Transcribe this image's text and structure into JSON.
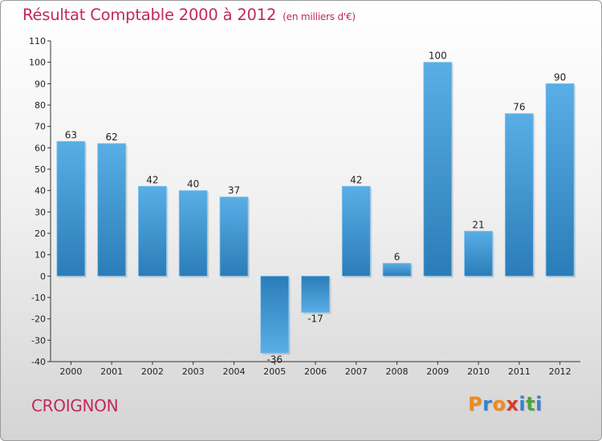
{
  "header": {
    "title": "Résultat Comptable 2000 à 2012",
    "unit": "(en milliers d'€)"
  },
  "footer": {
    "commune": "CROIGNON",
    "logo": [
      "P",
      "r",
      "o",
      "x",
      "i",
      "t",
      "i"
    ]
  },
  "colors": {
    "title": "#c2285e",
    "bar_top": "#5aaee6",
    "bar_bottom": "#2a7db8",
    "logo": [
      "#f08a1c",
      "#3b7fd0",
      "#f08a1c",
      "#d93a2b",
      "#3b7fd0",
      "#4aa63a",
      "#3b7fd0"
    ]
  },
  "chart_data": {
    "type": "bar",
    "title": "Résultat Comptable 2000 à 2012",
    "categories": [
      "2000",
      "2001",
      "2002",
      "2003",
      "2004",
      "2005",
      "2006",
      "2007",
      "2008",
      "2009",
      "2010",
      "2011",
      "2012"
    ],
    "values": [
      63,
      62,
      42,
      40,
      37,
      -36,
      -17,
      42,
      6,
      100,
      21,
      76,
      90
    ],
    "value_labels": [
      "63",
      "62",
      "42",
      "40",
      "37",
      "-36",
      "-17",
      "42",
      "6",
      "100",
      "21",
      "76",
      "90"
    ],
    "ylim": [
      -40,
      110
    ],
    "yticks": [
      "110",
      "100",
      "90",
      "80",
      "70",
      "60",
      "50",
      "40",
      "30",
      "20",
      "10",
      "0",
      "-10",
      "-20",
      "-30",
      "-40"
    ],
    "grid": false,
    "legend": "none"
  }
}
